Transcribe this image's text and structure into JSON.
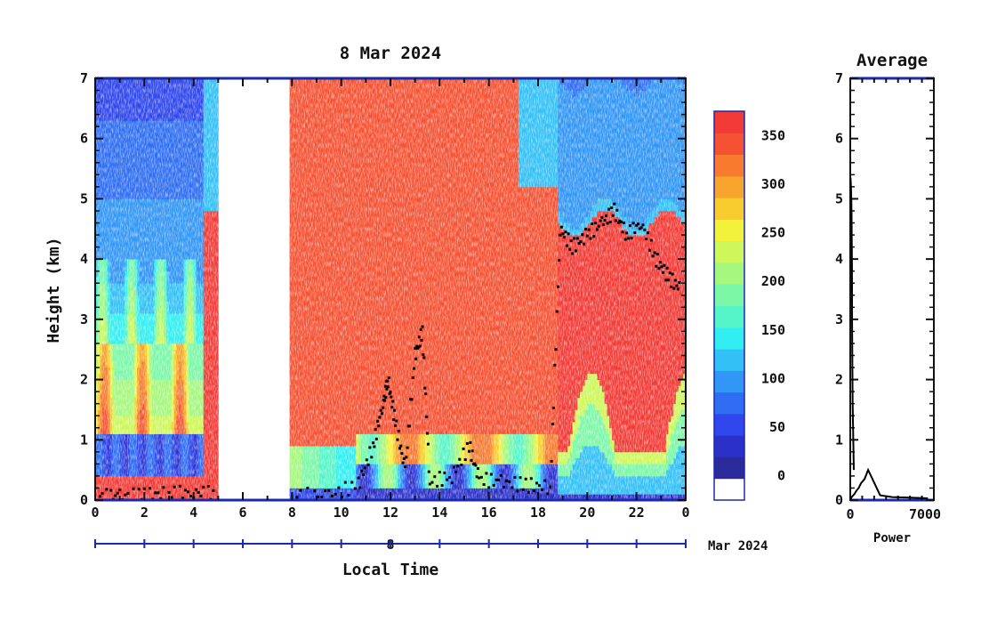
{
  "chart_data": [
    {
      "type": "heatmap",
      "title": "8 Mar 2024",
      "xlabel": "Local Time",
      "ylabel": "Height (km)",
      "xlim": [
        0,
        24
      ],
      "ylim": [
        0,
        7
      ],
      "x_ticks": [
        "0",
        "2",
        "4",
        "6",
        "8",
        "10",
        "12",
        "14",
        "16",
        "18",
        "20",
        "22",
        "0"
      ],
      "y_ticks": [
        "0",
        "1",
        "2",
        "3",
        "4",
        "5",
        "6",
        "7"
      ],
      "date_bar": {
        "day": "8",
        "month_year": "Mar 2024"
      },
      "no_data_hours": [
        5.0,
        7.9
      ],
      "colorbar": {
        "tick_labels": [
          "0",
          "50",
          "100",
          "150",
          "200",
          "250",
          "300",
          "350"
        ],
        "tick_values": [
          0,
          50,
          100,
          150,
          200,
          250,
          300,
          350
        ],
        "range": [
          -25,
          375
        ],
        "colors": [
          "#ffffff",
          "#2a2a9a",
          "#2b30c8",
          "#2f47ec",
          "#2f6ef2",
          "#3196f5",
          "#33c0f6",
          "#33eef0",
          "#55f5c8",
          "#7bf7a7",
          "#a5f77e",
          "#cdf75a",
          "#f2f23a",
          "#f8cc2e",
          "#f7a52c",
          "#f77a2f",
          "#f55233",
          "#f23b36"
        ]
      },
      "cloud_base_track": [
        {
          "x": 0.2,
          "y": 0.06
        },
        {
          "x": 1.0,
          "y": 0.07
        },
        {
          "x": 2.0,
          "y": 0.08
        },
        {
          "x": 3.0,
          "y": 0.11
        },
        {
          "x": 4.0,
          "y": 0.13
        },
        {
          "x": 4.9,
          "y": 0.1
        },
        {
          "x": 8.2,
          "y": 0.08
        },
        {
          "x": 9.5,
          "y": 0.08
        },
        {
          "x": 10.7,
          "y": 0.25
        },
        {
          "x": 11.3,
          "y": 0.9
        },
        {
          "x": 11.7,
          "y": 1.6
        },
        {
          "x": 11.9,
          "y": 2.0
        },
        {
          "x": 12.2,
          "y": 1.3
        },
        {
          "x": 12.6,
          "y": 0.5
        },
        {
          "x": 13.0,
          "y": 2.4
        },
        {
          "x": 13.3,
          "y": 2.8
        },
        {
          "x": 13.6,
          "y": 0.3
        },
        {
          "x": 14.5,
          "y": 0.4
        },
        {
          "x": 15.2,
          "y": 0.9
        },
        {
          "x": 15.6,
          "y": 0.35
        },
        {
          "x": 16.5,
          "y": 0.3
        },
        {
          "x": 17.5,
          "y": 0.25
        },
        {
          "x": 18.5,
          "y": 0.22
        },
        {
          "x": 18.9,
          "y": 4.5
        },
        {
          "x": 19.4,
          "y": 4.2
        },
        {
          "x": 20.0,
          "y": 4.4
        },
        {
          "x": 20.6,
          "y": 4.6
        },
        {
          "x": 21.1,
          "y": 4.8
        },
        {
          "x": 21.6,
          "y": 4.4
        },
        {
          "x": 22.2,
          "y": 4.6
        },
        {
          "x": 22.8,
          "y": 4.0
        },
        {
          "x": 23.3,
          "y": 3.7
        },
        {
          "x": 23.8,
          "y": 3.5
        }
      ]
    },
    {
      "type": "line",
      "title": "Average",
      "xlabel": "Power",
      "ylabel": "",
      "xlim": [
        0,
        7000
      ],
      "ylim": [
        0,
        7
      ],
      "x_ticks": [
        "0",
        "7000"
      ],
      "y_ticks": [
        "0",
        "1",
        "2",
        "3",
        "4",
        "5",
        "6",
        "7"
      ],
      "series": [
        {
          "x": [
            30,
            80,
            200,
            350,
            500,
            700,
            900,
            1200,
            1500,
            2500,
            3500,
            5000,
            6500
          ],
          "y": [
            0.0,
            0.04,
            0.07,
            0.1,
            0.15,
            0.2,
            0.28,
            0.35,
            0.5,
            0.08,
            0.05,
            0.04,
            0.03
          ]
        },
        {
          "x": [
            300,
            250,
            200,
            180,
            160,
            150,
            140,
            130,
            110,
            90,
            60,
            40,
            20
          ],
          "y": [
            0.5,
            1.0,
            1.6,
            2.2,
            2.8,
            3.4,
            3.9,
            4.3,
            4.7,
            5.0,
            5.2,
            5.3,
            5.35
          ]
        }
      ]
    }
  ]
}
